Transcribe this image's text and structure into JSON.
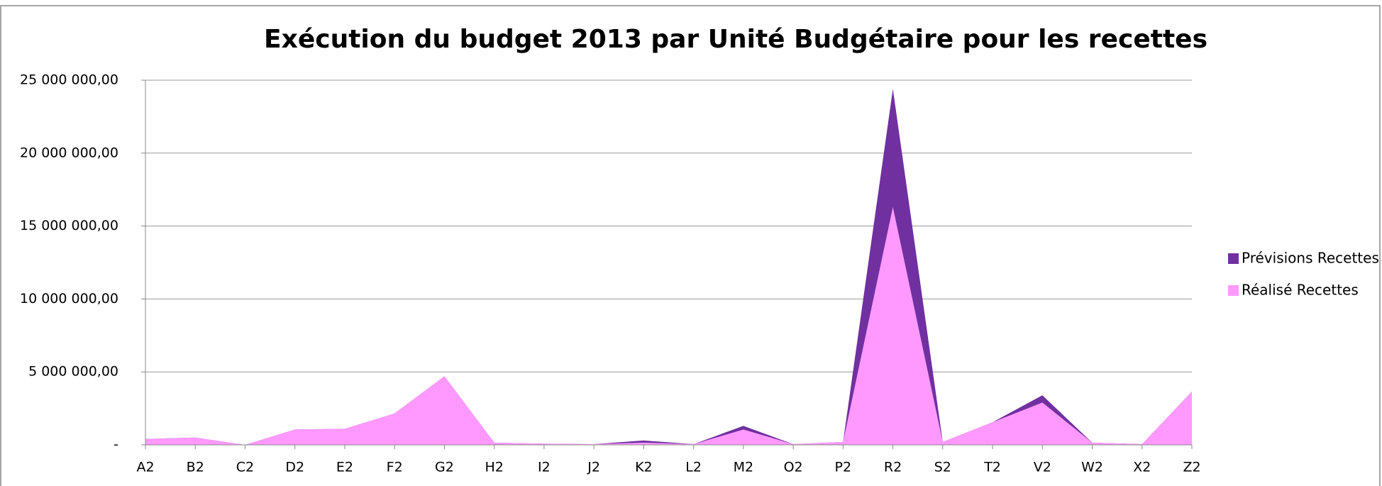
{
  "chart_data": {
    "type": "area",
    "title": "Exécution du budget 2013 par Unité Budgétaire pour les recettes",
    "categories": [
      "A2",
      "B2",
      "C2",
      "D2",
      "E2",
      "F2",
      "G2",
      "H2",
      "I2",
      "J2",
      "K2",
      "L2",
      "M2",
      "O2",
      "P2",
      "R2",
      "S2",
      "T2",
      "V2",
      "W2",
      "X2",
      "Z2"
    ],
    "series": [
      {
        "name": "Prévisions Recettes",
        "color": "#7030a0",
        "values": [
          400000,
          500000,
          0,
          1050000,
          1100000,
          2150000,
          4700000,
          150000,
          80000,
          50000,
          300000,
          50000,
          1300000,
          50000,
          200000,
          24400000,
          200000,
          1550000,
          3400000,
          150000,
          50000,
          3650000
        ]
      },
      {
        "name": "Réalisé Recettes",
        "color": "#ff99ff",
        "values": [
          400000,
          500000,
          0,
          1050000,
          1100000,
          2150000,
          4700000,
          150000,
          80000,
          50000,
          150000,
          50000,
          1050000,
          50000,
          200000,
          16300000,
          200000,
          1550000,
          2900000,
          150000,
          50000,
          3650000
        ]
      }
    ],
    "ylim": [
      0,
      25000000
    ],
    "yticks": [
      {
        "value": 0,
        "label": "-"
      },
      {
        "value": 5000000,
        "label": "5 000 000,00"
      },
      {
        "value": 10000000,
        "label": "10 000 000,00"
      },
      {
        "value": 15000000,
        "label": "15 000 000,00"
      },
      {
        "value": 20000000,
        "label": "20 000 000,00"
      },
      {
        "value": 25000000,
        "label": "25 000 000,00"
      }
    ],
    "grid": true,
    "legend": "right"
  }
}
